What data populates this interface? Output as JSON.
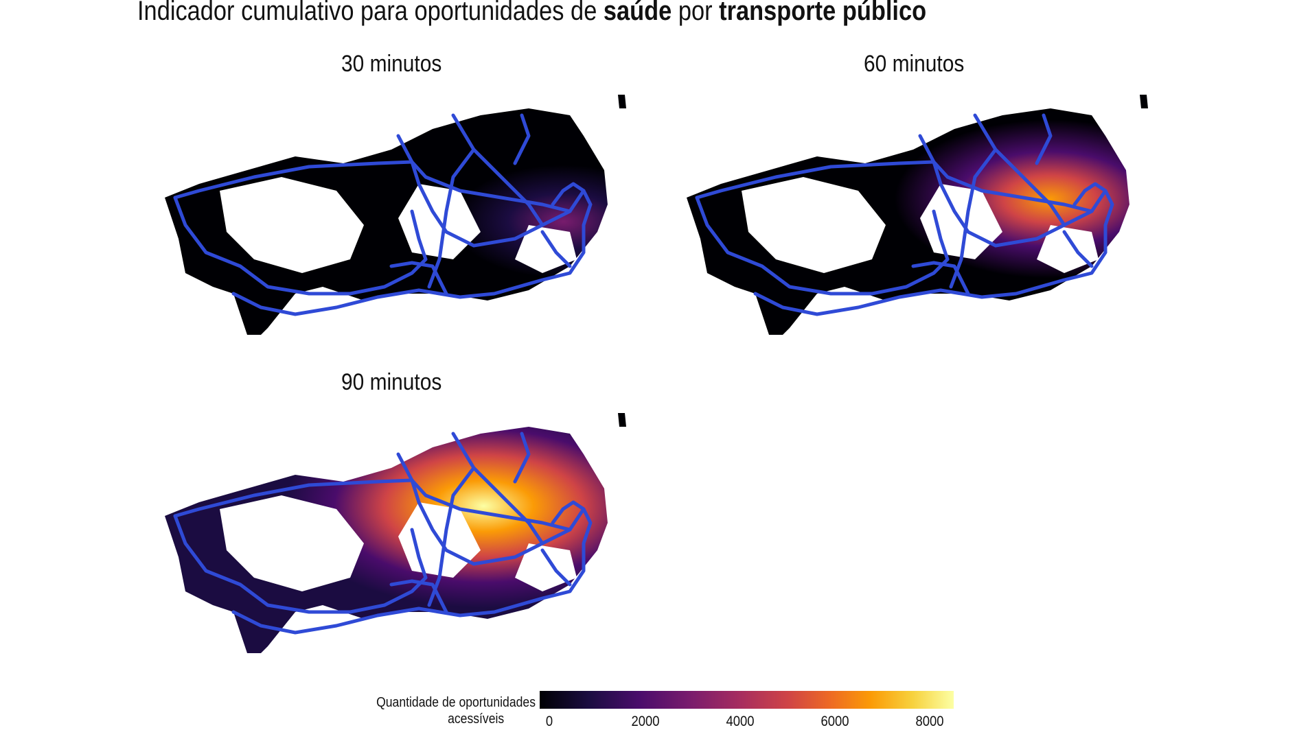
{
  "title": {
    "part1": "Indicador cumulativo para oportunidades de ",
    "bold1": "saúde",
    "part2": " por ",
    "bold2": "transporte público"
  },
  "panels": [
    {
      "label": "30 minutos",
      "level": 0.03
    },
    {
      "label": "60 minutos",
      "level": 0.35
    },
    {
      "label": "90 minutos",
      "level": 0.85
    }
  ],
  "legend": {
    "title_line1": "Quantidade de oportunidades",
    "title_line2": "acessíveis",
    "ticks": [
      "0",
      "2000",
      "4000",
      "6000",
      "8000"
    ]
  },
  "colors": {
    "transit_lines": "#2f4ad6",
    "low": "#000004",
    "mid": "#a52c60",
    "high": "#fcffa4"
  }
}
